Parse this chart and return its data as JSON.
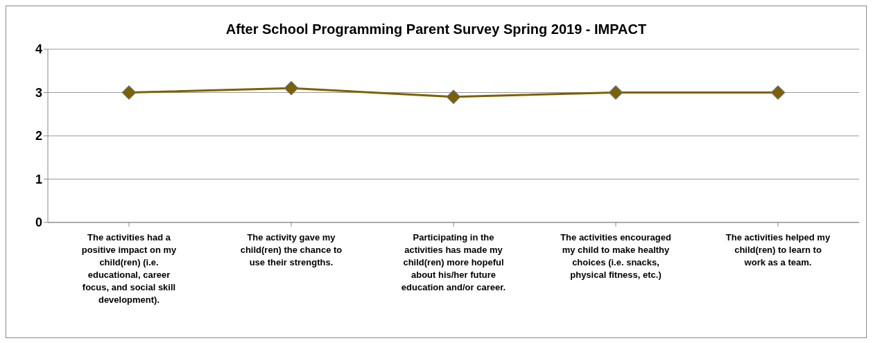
{
  "chart_data": {
    "type": "line",
    "title": "After School Programming Parent Survey Spring 2019 - IMPACT",
    "categories": [
      "The activities had a positive impact on my child(ren) (i.e. educational, career focus, and social skill development).",
      "The activity gave my child(ren) the chance to use their strengths.",
      "Participating in the activities has made my child(ren) more hopeful about his/her future education and/or career.",
      "The activities encouraged my child to make healthy choices (i.e. snacks, physical fitness, etc.)",
      "The activities helped my child(ren) to learn to work as a team."
    ],
    "series": [
      {
        "color": "#7f6000",
        "values": [
          3.0,
          3.1,
          2.9,
          3.0,
          3.0
        ]
      }
    ],
    "ylim": [
      0,
      4
    ],
    "yticks": [
      0,
      1,
      2,
      3,
      4
    ],
    "grid": "y",
    "legend": false,
    "marker": "diamond",
    "line_style": "solid"
  }
}
